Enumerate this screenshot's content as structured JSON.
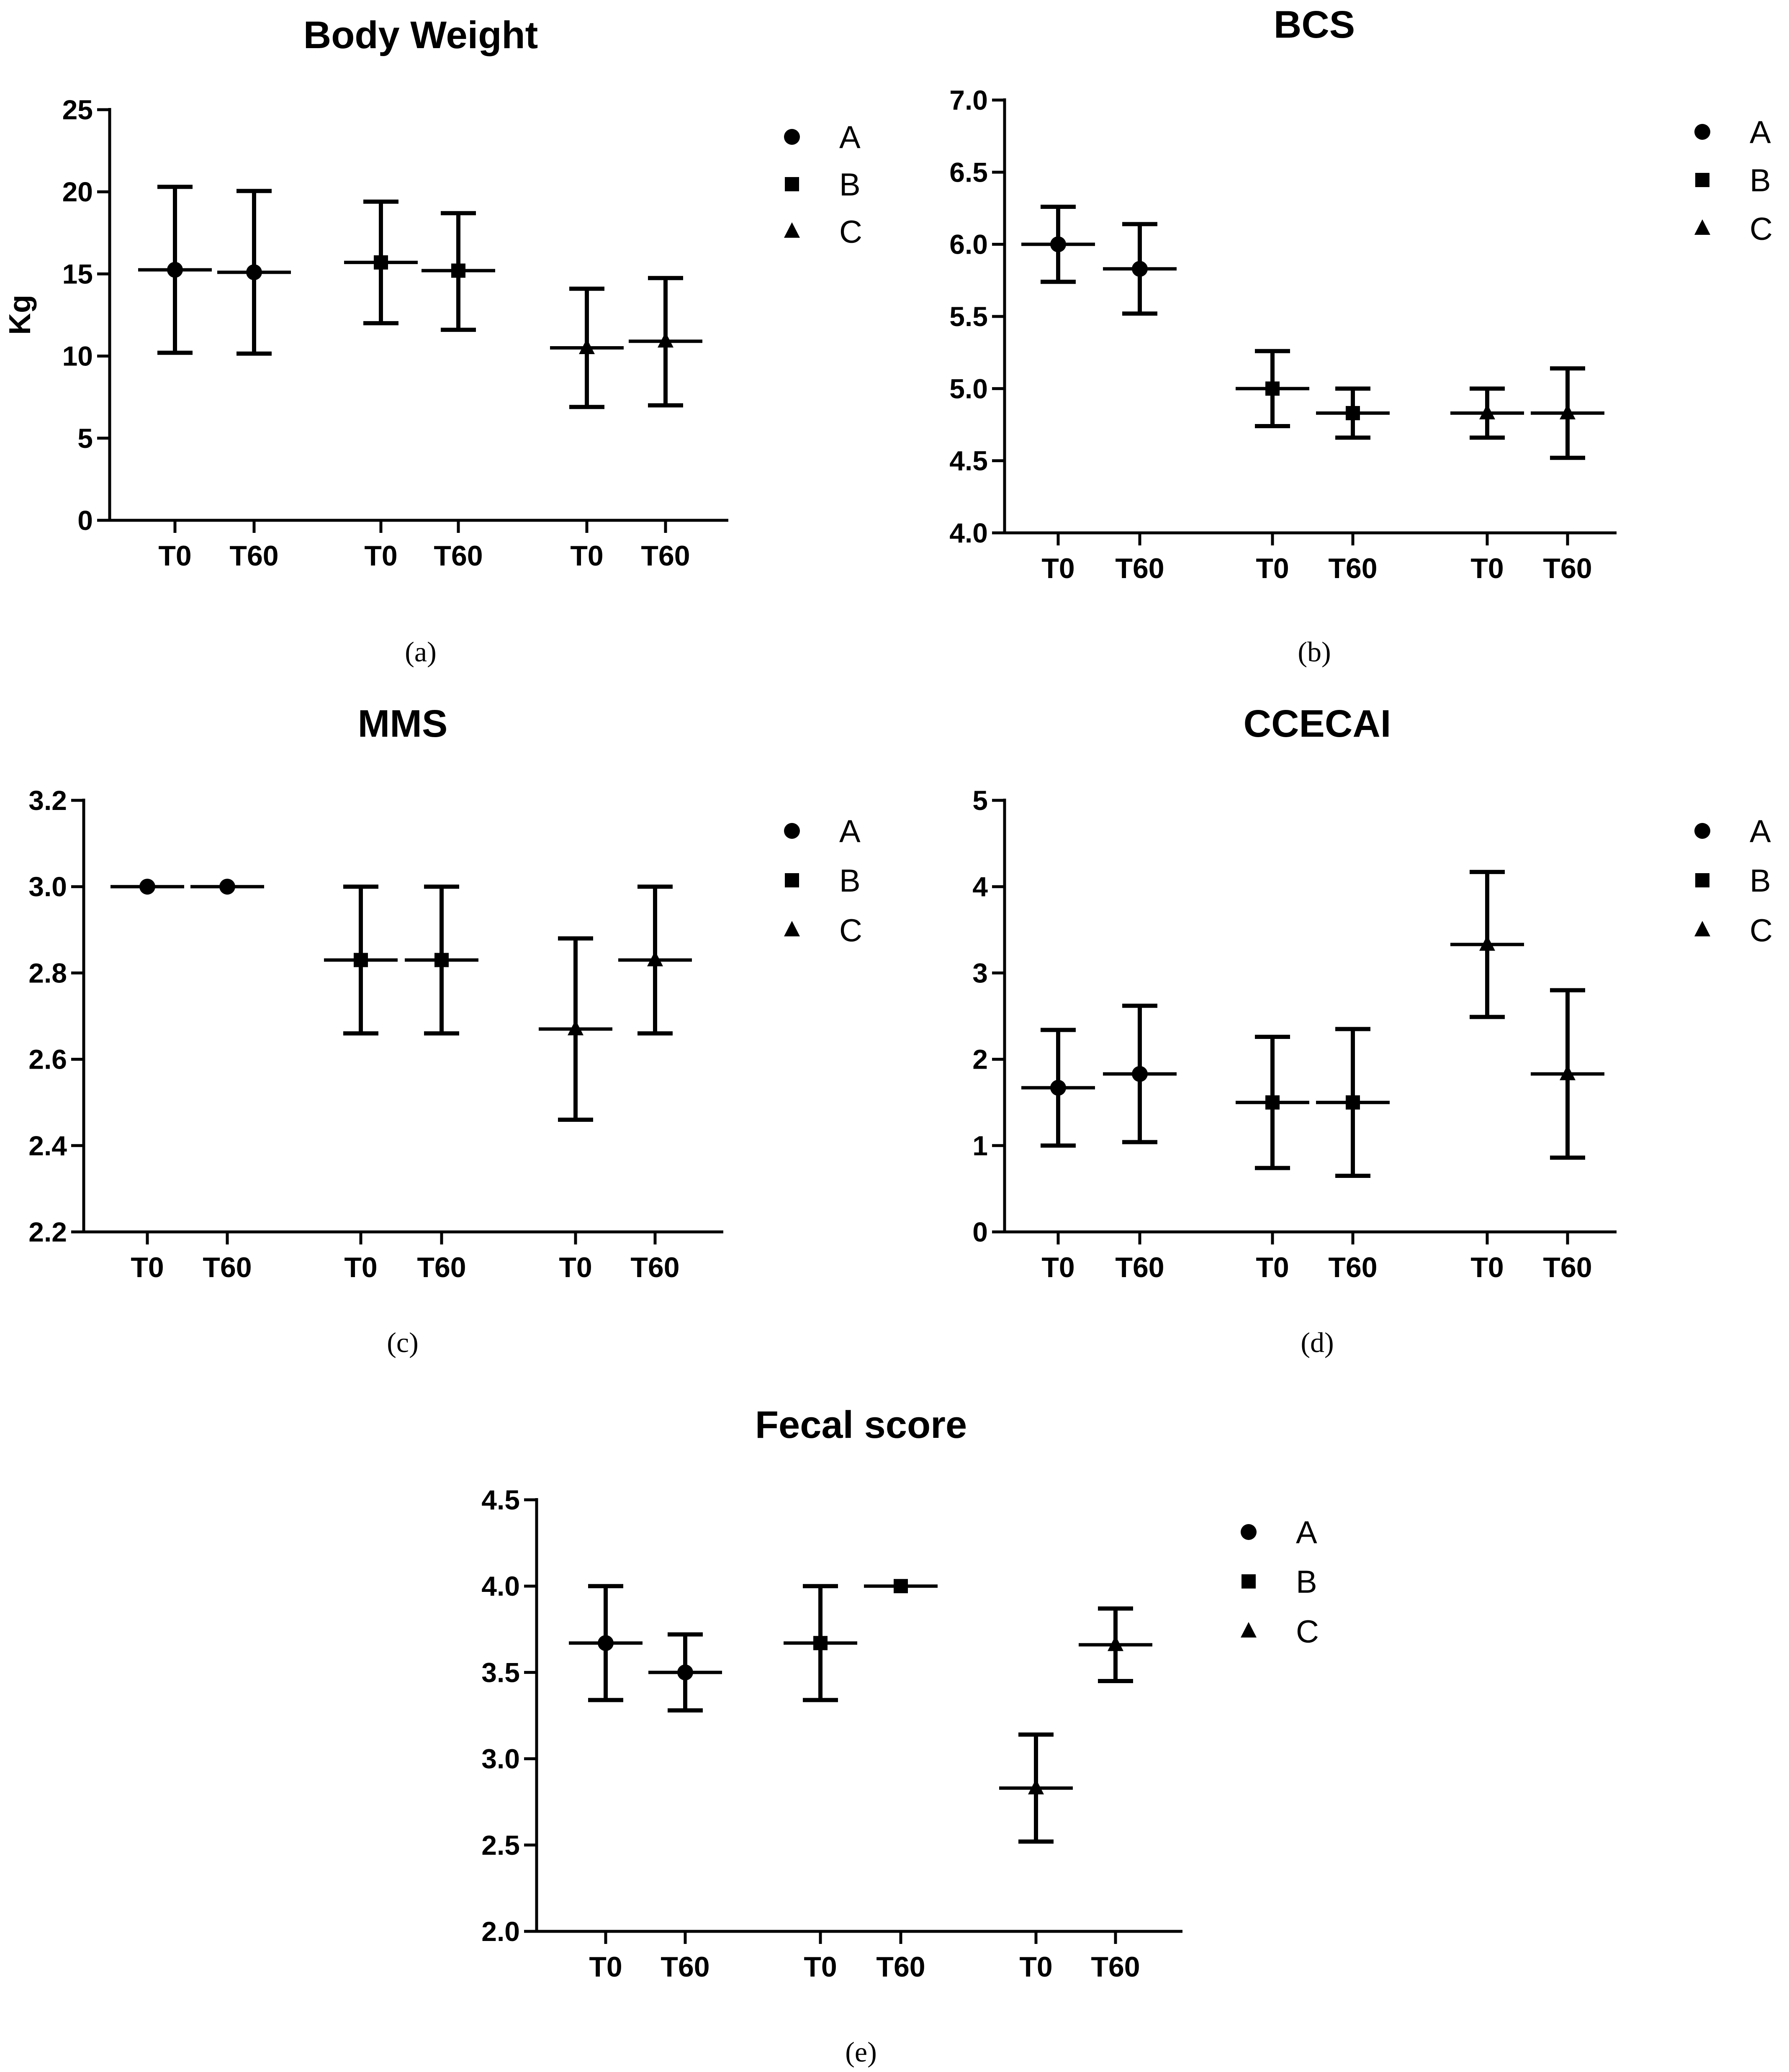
{
  "figure": {
    "description": "",
    "legend_symbols": {
      "A": "circle",
      "B": "square",
      "C": "triangle"
    }
  },
  "chart_data": [
    {
      "id": "a",
      "type": "scatter",
      "title": "Body Weight",
      "caption": "(a)",
      "xlabel": "",
      "ylabel": "Kg",
      "ylim": [
        0,
        25
      ],
      "yticks": [
        0,
        5,
        10,
        15,
        20,
        25
      ],
      "ytick_labels": [
        "0",
        "5",
        "10",
        "15",
        "20",
        "25"
      ],
      "legend": [
        "A",
        "B",
        "C"
      ],
      "series": [
        {
          "name": "A",
          "marker": "circle",
          "points": [
            {
              "x": "T0",
              "mean": 15.25,
              "lower": 10.2,
              "upper": 20.3
            },
            {
              "x": "T60",
              "mean": 15.1,
              "lower": 10.15,
              "upper": 20.05
            }
          ]
        },
        {
          "name": "B",
          "marker": "square",
          "points": [
            {
              "x": "T0",
              "mean": 15.7,
              "lower": 12.0,
              "upper": 19.4
            },
            {
              "x": "T60",
              "mean": 15.2,
              "lower": 11.6,
              "upper": 18.7
            }
          ]
        },
        {
          "name": "C",
          "marker": "triangle",
          "points": [
            {
              "x": "T0",
              "mean": 10.5,
              "lower": 6.9,
              "upper": 14.1
            },
            {
              "x": "T60",
              "mean": 10.9,
              "lower": 7.0,
              "upper": 14.75
            }
          ]
        }
      ]
    },
    {
      "id": "b",
      "type": "scatter",
      "title": "BCS",
      "caption": "(b)",
      "xlabel": "",
      "ylabel": "",
      "ylim": [
        4.0,
        7.0
      ],
      "yticks": [
        4.0,
        4.5,
        5.0,
        5.5,
        6.0,
        6.5,
        7.0
      ],
      "ytick_labels": [
        "4.0",
        "4.5",
        "5.0",
        "5.5",
        "6.0",
        "6.5",
        "7.0"
      ],
      "legend": [
        "A",
        "B",
        "C"
      ],
      "series": [
        {
          "name": "A",
          "marker": "circle",
          "points": [
            {
              "x": "T0",
              "mean": 6.0,
              "lower": 5.74,
              "upper": 6.26
            },
            {
              "x": "T60",
              "mean": 5.83,
              "lower": 5.52,
              "upper": 6.14
            }
          ]
        },
        {
          "name": "B",
          "marker": "square",
          "points": [
            {
              "x": "T0",
              "mean": 5.0,
              "lower": 4.74,
              "upper": 5.26
            },
            {
              "x": "T60",
              "mean": 4.83,
              "lower": 4.66,
              "upper": 5.0
            }
          ]
        },
        {
          "name": "C",
          "marker": "triangle",
          "points": [
            {
              "x": "T0",
              "mean": 4.83,
              "lower": 4.66,
              "upper": 5.0
            },
            {
              "x": "T60",
              "mean": 4.83,
              "lower": 4.52,
              "upper": 5.14
            }
          ]
        }
      ]
    },
    {
      "id": "c",
      "type": "scatter",
      "title": "MMS",
      "caption": "(c)",
      "xlabel": "",
      "ylabel": "",
      "ylim": [
        2.2,
        3.2
      ],
      "yticks": [
        2.2,
        2.4,
        2.6,
        2.8,
        3.0,
        3.2
      ],
      "ytick_labels": [
        "2.2",
        "2.4",
        "2.6",
        "2.8",
        "3.0",
        "3.2"
      ],
      "legend": [
        "A",
        "B",
        "C"
      ],
      "series": [
        {
          "name": "A",
          "marker": "circle",
          "points": [
            {
              "x": "T0",
              "mean": 3.0,
              "lower": 3.0,
              "upper": 3.0
            },
            {
              "x": "T60",
              "mean": 3.0,
              "lower": 3.0,
              "upper": 3.0
            }
          ]
        },
        {
          "name": "B",
          "marker": "square",
          "points": [
            {
              "x": "T0",
              "mean": 2.83,
              "lower": 2.66,
              "upper": 3.0
            },
            {
              "x": "T60",
              "mean": 2.83,
              "lower": 2.66,
              "upper": 3.0
            }
          ]
        },
        {
          "name": "C",
          "marker": "triangle",
          "points": [
            {
              "x": "T0",
              "mean": 2.67,
              "lower": 2.46,
              "upper": 2.88
            },
            {
              "x": "T60",
              "mean": 2.83,
              "lower": 2.66,
              "upper": 3.0
            }
          ]
        }
      ]
    },
    {
      "id": "d",
      "type": "scatter",
      "title": "CCECAI",
      "caption": "(d)",
      "xlabel": "",
      "ylabel": "",
      "ylim": [
        0,
        5
      ],
      "yticks": [
        0,
        1,
        2,
        3,
        4,
        5
      ],
      "ytick_labels": [
        "0",
        "1",
        "2",
        "3",
        "4",
        "5"
      ],
      "legend": [
        "A",
        "B",
        "C"
      ],
      "series": [
        {
          "name": "A",
          "marker": "circle",
          "points": [
            {
              "x": "T0",
              "mean": 1.67,
              "lower": 1.0,
              "upper": 2.34
            },
            {
              "x": "T60",
              "mean": 1.83,
              "lower": 1.04,
              "upper": 2.62
            }
          ]
        },
        {
          "name": "B",
          "marker": "square",
          "points": [
            {
              "x": "T0",
              "mean": 1.5,
              "lower": 0.74,
              "upper": 2.26
            },
            {
              "x": "T60",
              "mean": 1.5,
              "lower": 0.65,
              "upper": 2.35
            }
          ]
        },
        {
          "name": "C",
          "marker": "triangle",
          "points": [
            {
              "x": "T0",
              "mean": 3.33,
              "lower": 2.49,
              "upper": 4.17
            },
            {
              "x": "T60",
              "mean": 1.83,
              "lower": 0.86,
              "upper": 2.8
            }
          ]
        }
      ]
    },
    {
      "id": "e",
      "type": "scatter",
      "title": "Fecal score",
      "caption": "(e)",
      "xlabel": "",
      "ylabel": "",
      "ylim": [
        2.0,
        4.5
      ],
      "yticks": [
        2.0,
        2.5,
        3.0,
        3.5,
        4.0,
        4.5
      ],
      "ytick_labels": [
        "2.0",
        "2.5",
        "3.0",
        "3.5",
        "4.0",
        "4.5"
      ],
      "legend": [
        "A",
        "B",
        "C"
      ],
      "series": [
        {
          "name": "A",
          "marker": "circle",
          "points": [
            {
              "x": "T0",
              "mean": 3.67,
              "lower": 3.34,
              "upper": 4.0
            },
            {
              "x": "T60",
              "mean": 3.5,
              "lower": 3.28,
              "upper": 3.72
            }
          ]
        },
        {
          "name": "B",
          "marker": "square",
          "points": [
            {
              "x": "T0",
              "mean": 3.67,
              "lower": 3.34,
              "upper": 4.0
            },
            {
              "x": "T60",
              "mean": 4.0,
              "lower": 4.0,
              "upper": 4.0
            }
          ]
        },
        {
          "name": "C",
          "marker": "triangle",
          "points": [
            {
              "x": "T0",
              "mean": 2.83,
              "lower": 2.52,
              "upper": 3.14
            },
            {
              "x": "T60",
              "mean": 3.66,
              "lower": 3.45,
              "upper": 3.87
            }
          ]
        }
      ]
    }
  ]
}
